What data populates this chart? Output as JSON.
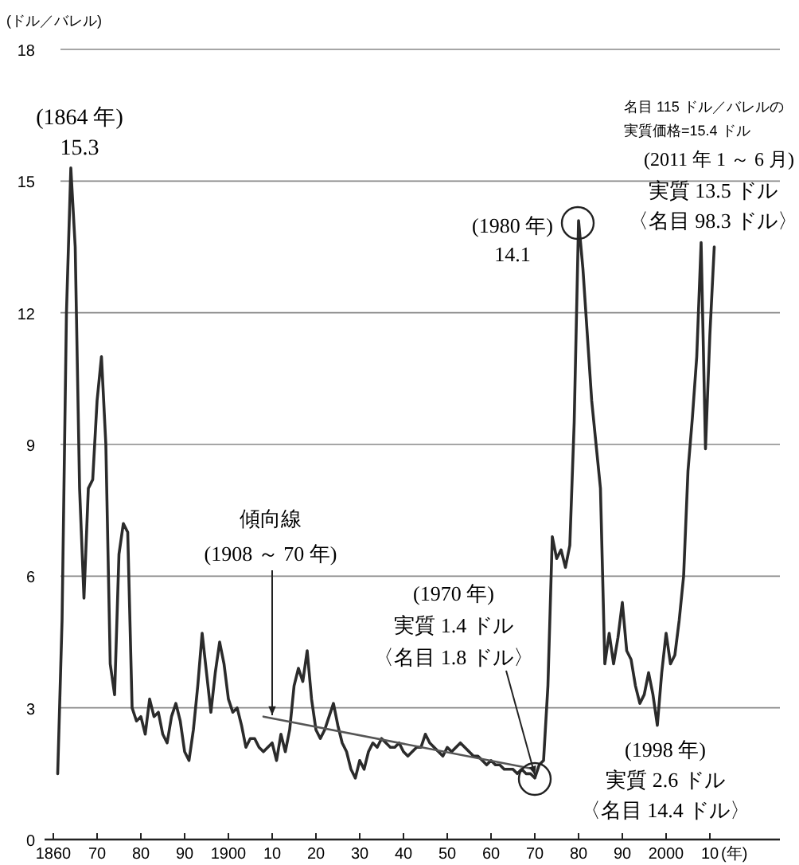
{
  "chart_data": {
    "type": "line",
    "ylabel": "(ドル／バレル)",
    "xlabel": "(年)",
    "xlim": [
      1858,
      2026
    ],
    "ylim": [
      0,
      18
    ],
    "xticks": [
      {
        "value": 1860,
        "label": "1860"
      },
      {
        "value": 1870,
        "label": "70"
      },
      {
        "value": 1880,
        "label": "80"
      },
      {
        "value": 1890,
        "label": "90"
      },
      {
        "value": 1900,
        "label": "1900"
      },
      {
        "value": 1910,
        "label": "10"
      },
      {
        "value": 1920,
        "label": "20"
      },
      {
        "value": 1930,
        "label": "30"
      },
      {
        "value": 1940,
        "label": "40"
      },
      {
        "value": 1950,
        "label": "50"
      },
      {
        "value": 1960,
        "label": "60"
      },
      {
        "value": 1970,
        "label": "70"
      },
      {
        "value": 1980,
        "label": "80"
      },
      {
        "value": 1990,
        "label": "90"
      },
      {
        "value": 2000,
        "label": "2000"
      },
      {
        "value": 2010,
        "label": "10"
      }
    ],
    "yticks": [
      0,
      3,
      6,
      9,
      12,
      15,
      18
    ],
    "grid": "y",
    "series": [
      {
        "color": "#2b2b2b",
        "x": [
          1861,
          1862,
          1863,
          1864,
          1865,
          1866,
          1867,
          1868,
          1869,
          1870,
          1871,
          1872,
          1873,
          1874,
          1875,
          1876,
          1877,
          1878,
          1879,
          1880,
          1881,
          1882,
          1883,
          1884,
          1885,
          1886,
          1887,
          1888,
          1889,
          1890,
          1891,
          1892,
          1893,
          1894,
          1895,
          1896,
          1897,
          1898,
          1899,
          1900,
          1901,
          1902,
          1903,
          1904,
          1905,
          1906,
          1907,
          1908,
          1909,
          1910,
          1911,
          1912,
          1913,
          1914,
          1915,
          1916,
          1917,
          1918,
          1919,
          1920,
          1921,
          1922,
          1923,
          1924,
          1925,
          1926,
          1927,
          1928,
          1929,
          1930,
          1931,
          1932,
          1933,
          1934,
          1935,
          1936,
          1937,
          1938,
          1939,
          1940,
          1941,
          1942,
          1943,
          1944,
          1945,
          1946,
          1947,
          1948,
          1949,
          1950,
          1951,
          1952,
          1953,
          1954,
          1955,
          1956,
          1957,
          1958,
          1959,
          1960,
          1961,
          1962,
          1963,
          1964,
          1965,
          1966,
          1967,
          1968,
          1969,
          1970,
          1971,
          1972,
          1973,
          1974,
          1975,
          1976,
          1977,
          1978,
          1979,
          1980,
          1981,
          1982,
          1983,
          1984,
          1985,
          1986,
          1987,
          1988,
          1989,
          1990,
          1991,
          1992,
          1993,
          1994,
          1995,
          1996,
          1997,
          1998,
          1999,
          2000,
          2001,
          2002,
          2003,
          2004,
          2005,
          2006,
          2007,
          2008,
          2009,
          2010,
          2011
        ],
        "values": [
          1.5,
          5,
          12,
          15.3,
          13.5,
          8,
          5.5,
          8,
          8.2,
          10,
          11,
          9,
          4,
          3.3,
          6.5,
          7.2,
          7,
          3,
          2.7,
          2.8,
          2.4,
          3.2,
          2.8,
          2.9,
          2.4,
          2.2,
          2.8,
          3.1,
          2.7,
          2.0,
          1.8,
          2.5,
          3.5,
          4.7,
          3.8,
          2.9,
          3.8,
          4.5,
          4.0,
          3.2,
          2.9,
          3.0,
          2.6,
          2.1,
          2.3,
          2.3,
          2.1,
          2.0,
          2.1,
          2.2,
          1.8,
          2.4,
          2.0,
          2.5,
          3.5,
          3.9,
          3.6,
          4.3,
          3.2,
          2.5,
          2.3,
          2.5,
          2.8,
          3.1,
          2.6,
          2.2,
          2.0,
          1.6,
          1.4,
          1.8,
          1.6,
          2.0,
          2.2,
          2.1,
          2.3,
          2.2,
          2.1,
          2.1,
          2.2,
          2.0,
          1.9,
          2.0,
          2.1,
          2.1,
          2.4,
          2.2,
          2.1,
          2.0,
          1.9,
          2.1,
          2.0,
          2.1,
          2.2,
          2.1,
          2.0,
          1.9,
          1.9,
          1.8,
          1.7,
          1.8,
          1.7,
          1.7,
          1.6,
          1.6,
          1.6,
          1.5,
          1.6,
          1.5,
          1.5,
          1.4,
          1.7,
          1.8,
          3.5,
          6.9,
          6.4,
          6.6,
          6.2,
          6.7,
          9.5,
          14.1,
          13,
          11.5,
          10,
          9,
          8,
          4.0,
          4.7,
          4.0,
          4.6,
          5.4,
          4.3,
          4.1,
          3.5,
          3.1,
          3.3,
          3.8,
          3.3,
          2.6,
          3.8,
          4.7,
          4.0,
          4.2,
          5.0,
          6.0,
          8.4,
          9.6,
          11,
          13.6,
          8.9,
          11.5,
          13.5
        ]
      },
      {
        "color": "#555555",
        "x": [
          1908,
          1970
        ],
        "values": [
          2.8,
          1.6
        ]
      }
    ],
    "annotations": [
      "(1864 年)",
      "15.3",
      "(1980 年)",
      "14.1",
      "(2011 年 1 ～ 6 月)",
      "実質 13.5 ドル",
      "〈名目 98.3 ドル〉",
      "(1970 年)",
      "実質 1.4 ドル",
      {
        "text": "〈名目 1.8 ドル〉",
        "x": 1970,
        "y": 1.4
      },
      "(1998 年)",
      "実質 2.6 ドル",
      "〈名目 14.4 ドル〉",
      "傾向線",
      {
        "text": "(1908 ～ 70 年)",
        "x": 1910,
        "y": 2.76
      },
      "名目 115 ドル／バレルの",
      "実質価格=15.4 ドル"
    ]
  }
}
